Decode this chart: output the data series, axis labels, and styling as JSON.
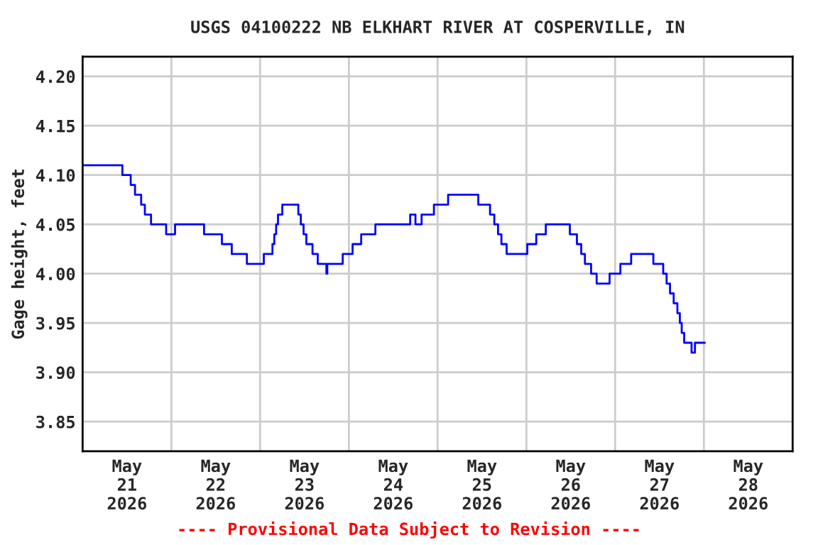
{
  "chart_data": {
    "type": "step",
    "title": "USGS 04100222 NB ELKHART RIVER AT COSPERVILLE, IN",
    "ylabel": "Gage height, feet",
    "annotations": [
      "---- Provisional Data Subject to Revision ----"
    ],
    "series": [
      {
        "color": "#0000ff",
        "x": [
          "2026-05-21T00:00",
          "2026-05-21T10:45",
          "2026-05-21T13:00",
          "2026-05-21T14:10",
          "2026-05-21T15:50",
          "2026-05-21T16:50",
          "2026-05-21T18:30",
          "2026-05-21T22:35",
          "2026-05-22T01:00",
          "2026-05-22T08:50",
          "2026-05-22T13:40",
          "2026-05-22T16:20",
          "2026-05-22T20:25",
          "2026-05-23T01:00",
          "2026-05-23T03:20",
          "2026-05-23T03:50",
          "2026-05-23T04:20",
          "2026-05-23T04:50",
          "2026-05-23T06:00",
          "2026-05-23T10:20",
          "2026-05-23T11:00",
          "2026-05-23T11:45",
          "2026-05-23T12:30",
          "2026-05-23T14:10",
          "2026-05-23T15:35",
          "2026-05-23T17:55",
          "2026-05-23T18:10",
          "2026-05-23T22:20",
          "2026-05-24T01:00",
          "2026-05-24T03:20",
          "2026-05-24T07:10",
          "2026-05-24T16:35",
          "2026-05-24T18:00",
          "2026-05-24T19:40",
          "2026-05-24T23:00",
          "2026-05-25T02:50",
          "2026-05-25T11:00",
          "2026-05-25T14:10",
          "2026-05-25T15:20",
          "2026-05-25T16:20",
          "2026-05-25T17:15",
          "2026-05-25T18:40",
          "2026-05-26T00:15",
          "2026-05-26T02:40",
          "2026-05-26T05:15",
          "2026-05-26T11:45",
          "2026-05-26T13:40",
          "2026-05-26T14:50",
          "2026-05-26T15:50",
          "2026-05-26T17:30",
          "2026-05-26T19:00",
          "2026-05-26T22:30",
          "2026-05-27T01:25",
          "2026-05-27T04:20",
          "2026-05-27T10:20",
          "2026-05-27T13:00",
          "2026-05-27T13:55",
          "2026-05-27T14:50",
          "2026-05-27T15:50",
          "2026-05-27T16:50",
          "2026-05-27T17:30",
          "2026-05-27T18:00",
          "2026-05-27T18:40",
          "2026-05-27T20:40",
          "2026-05-27T21:35",
          "2026-05-28T00:15"
        ],
        "values": [
          4.11,
          4.1,
          4.09,
          4.08,
          4.07,
          4.06,
          4.05,
          4.04,
          4.05,
          4.04,
          4.03,
          4.02,
          4.01,
          4.02,
          4.03,
          4.04,
          4.05,
          4.06,
          4.07,
          4.06,
          4.05,
          4.04,
          4.03,
          4.02,
          4.01,
          4.0,
          4.01,
          4.02,
          4.03,
          4.04,
          4.05,
          4.06,
          4.05,
          4.06,
          4.07,
          4.08,
          4.07,
          4.06,
          4.05,
          4.04,
          4.03,
          4.02,
          4.03,
          4.04,
          4.05,
          4.04,
          4.03,
          4.02,
          4.01,
          4.0,
          3.99,
          4.0,
          4.01,
          4.02,
          4.01,
          4.0,
          3.99,
          3.98,
          3.97,
          3.96,
          3.95,
          3.94,
          3.93,
          3.92,
          3.93,
          3.93
        ]
      }
    ],
    "xlim": [
      "2026-05-21",
      "2026-05-29"
    ],
    "xticks": [
      {
        "value": "2026-05-21T12:00",
        "label": "May\n21\n2026"
      },
      {
        "value": "2026-05-22",
        "label": null
      },
      {
        "value": "2026-05-22T12:00",
        "label": "May\n22\n2026"
      },
      {
        "value": "2026-05-23",
        "label": null
      },
      {
        "value": "2026-05-23T12:00",
        "label": "May\n23\n2026"
      },
      {
        "value": "2026-05-24",
        "label": null
      },
      {
        "value": "2026-05-24T12:00",
        "label": "May\n24\n2026"
      },
      {
        "value": "2026-05-25",
        "label": null
      },
      {
        "value": "2026-05-25T12:00",
        "label": "May\n25\n2026"
      },
      {
        "value": "2026-05-26",
        "label": null
      },
      {
        "value": "2026-05-26T12:00",
        "label": "May\n26\n2026"
      },
      {
        "value": "2026-05-27",
        "label": null
      },
      {
        "value": "2026-05-27T12:00",
        "label": "May\n27\n2026"
      },
      {
        "value": "2026-05-28",
        "label": null
      },
      {
        "value": "2026-05-28T12:00",
        "label": "May\n28\n2026"
      }
    ],
    "ylim": [
      3.82,
      4.22
    ],
    "yticks": [
      {
        "value": 3.85,
        "label": "3.85"
      },
      {
        "value": 3.9,
        "label": "3.90"
      },
      {
        "value": 3.95,
        "label": "3.95"
      },
      {
        "value": 4.0,
        "label": "4.00"
      },
      {
        "value": 4.05,
        "label": "4.05"
      },
      {
        "value": 4.1,
        "label": "4.10"
      },
      {
        "value": 4.15,
        "label": "4.15"
      },
      {
        "value": 4.2,
        "label": "4.20"
      }
    ],
    "grid": true,
    "legend": false
  }
}
